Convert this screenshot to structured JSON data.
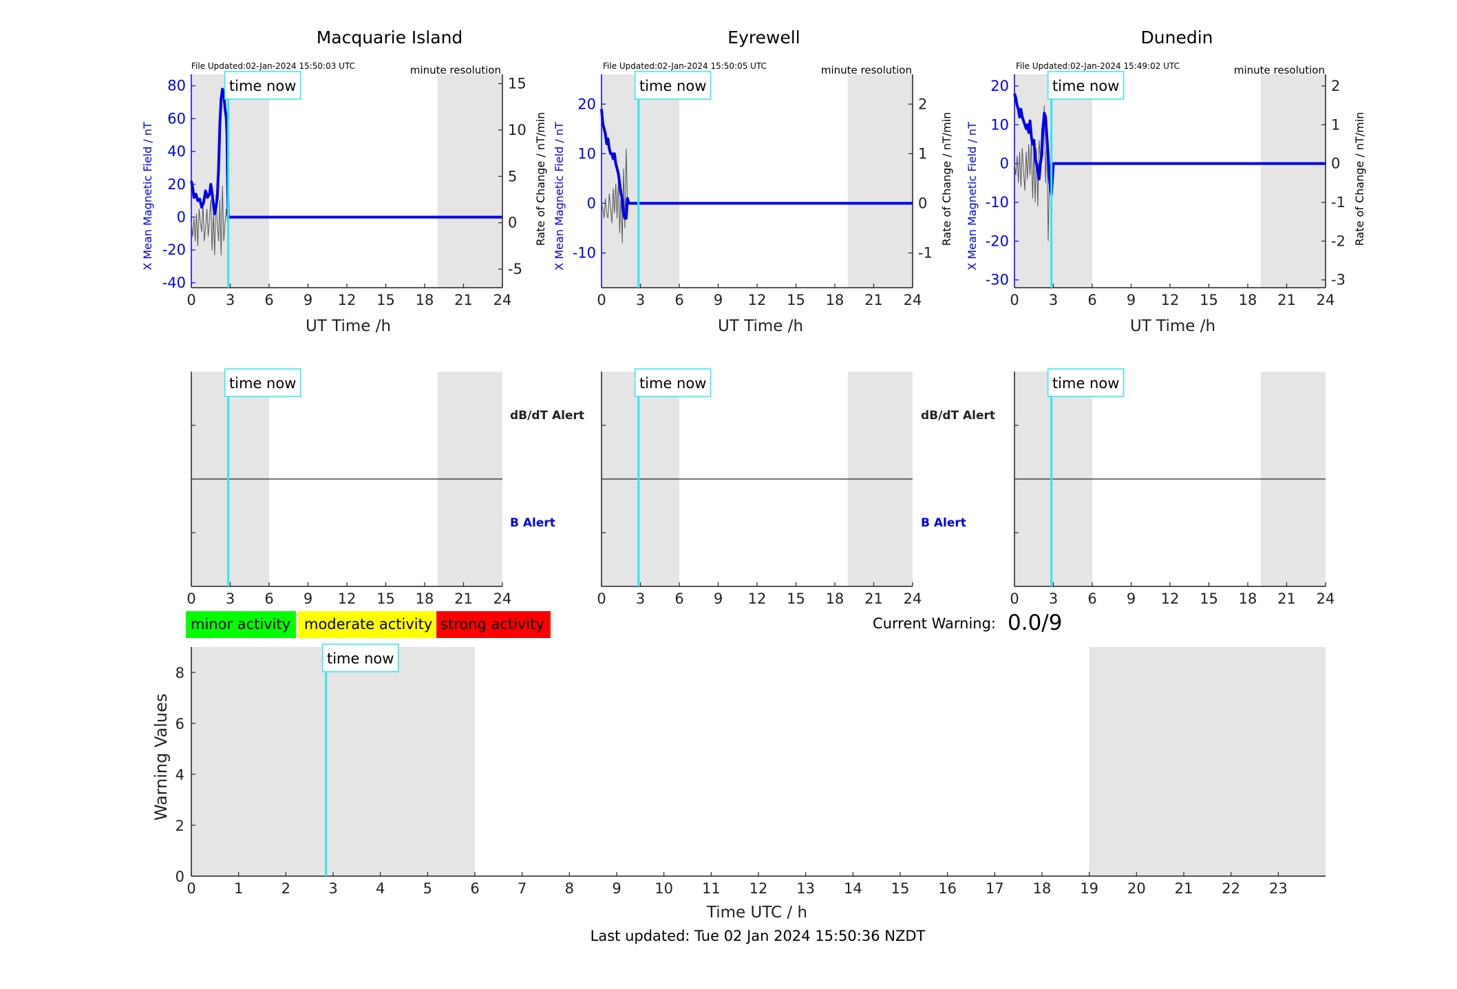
{
  "colors": {
    "shade": "#e5e5e5",
    "time_now_line": "#33e5ee",
    "x_field": "#0000ee",
    "rate": "#555555",
    "b_alert": "#0000ee",
    "minor": "#00ff00",
    "moderate": "#ffff00",
    "strong": "#ff0000"
  },
  "common": {
    "time_now_label": "time now",
    "minute_resolution": "minute resolution",
    "ut_xlabel": "UT Time /h",
    "y_left_label": "X Mean Magnetic Field / nT",
    "y_right_label": "Rate of Change / nT/min",
    "dbdt_alert": "dB/dT Alert",
    "b_alert": "B Alert"
  },
  "stations": [
    {
      "name": "Macquarie Island",
      "file_updated": "File Updated:02-Jan-2024 15:50:03 UTC"
    },
    {
      "name": "Eyrewell",
      "file_updated": "File Updated:02-Jan-2024 15:50:05 UTC"
    },
    {
      "name": "Dunedin",
      "file_updated": "File Updated:02-Jan-2024 15:49:02 UTC"
    }
  ],
  "legend": {
    "minor": "minor activity",
    "moderate": "moderate activity",
    "strong": "strong activity"
  },
  "current_warning": {
    "label": "Current Warning:",
    "value": "0.0/9"
  },
  "footer": {
    "last_updated": "Last updated: Tue 02 Jan 2024 15:50:36 NZDT"
  },
  "chart_data": [
    {
      "type": "line",
      "title": "Macquarie Island",
      "xlabel": "UT Time /h",
      "ylabel": "X Mean Magnetic Field / nT",
      "y2label": "Rate of Change / nT/min",
      "xlim": [
        0,
        24
      ],
      "xticks": [
        0,
        3,
        6,
        9,
        12,
        15,
        18,
        21,
        24
      ],
      "ylim": [
        -43,
        87
      ],
      "yticks": [
        -40,
        -20,
        0,
        20,
        40,
        60,
        80
      ],
      "y2lim": [
        -7,
        16
      ],
      "y2ticks": [
        -5,
        0,
        5,
        10,
        15
      ],
      "shaded_ranges": [
        [
          0,
          6
        ],
        [
          19,
          24
        ]
      ],
      "time_now": 2.85,
      "series": [
        {
          "axis": "left",
          "x": [
            0,
            0.1,
            0.2,
            0.35,
            0.5,
            0.65,
            0.8,
            0.95,
            1.1,
            1.25,
            1.4,
            1.5,
            1.6,
            1.7,
            1.8,
            1.9,
            2.0,
            2.1,
            2.2,
            2.3,
            2.4,
            2.5,
            2.6,
            2.7,
            2.75,
            2.8,
            2.85,
            3,
            24
          ],
          "y": [
            22,
            18,
            12,
            14,
            10,
            11,
            6,
            9,
            16,
            12,
            14,
            20,
            15,
            8,
            2,
            6,
            12,
            30,
            56,
            72,
            78,
            75,
            66,
            60,
            50,
            20,
            0,
            0,
            0
          ]
        },
        {
          "axis": "right",
          "x": [
            0,
            0.1,
            0.2,
            0.3,
            0.4,
            0.5,
            0.6,
            0.7,
            0.8,
            0.9,
            1.0,
            1.1,
            1.2,
            1.3,
            1.4,
            1.5,
            1.6,
            1.7,
            1.8,
            1.9,
            2.0,
            2.1,
            2.2,
            2.3,
            2.4,
            2.5,
            2.6,
            2.7,
            2.8
          ],
          "y": [
            0,
            -1.5,
            0.5,
            -2,
            1,
            -2.5,
            1.5,
            0,
            -1,
            2,
            -2,
            -0.5,
            1.5,
            -1.5,
            0.5,
            2.5,
            -3,
            1,
            -3.5,
            3,
            0,
            -2,
            2.5,
            -3.5,
            4,
            -2,
            0,
            1.5,
            0
          ]
        }
      ]
    },
    {
      "type": "line",
      "title": "Eyrewell",
      "xlabel": "UT Time /h",
      "ylabel": "X Mean Magnetic Field / nT",
      "y2label": "Rate of Change / nT/min",
      "xlim": [
        0,
        24
      ],
      "xticks": [
        0,
        3,
        6,
        9,
        12,
        15,
        18,
        21,
        24
      ],
      "ylim": [
        -17,
        26
      ],
      "yticks": [
        -10,
        0,
        10,
        20
      ],
      "y2lim": [
        -1.7,
        2.6
      ],
      "y2ticks": [
        -1,
        0,
        1,
        2
      ],
      "shaded_ranges": [
        [
          0,
          6
        ],
        [
          19,
          24
        ]
      ],
      "time_now": 2.85,
      "series": [
        {
          "axis": "left",
          "x": [
            0,
            0.1,
            0.2,
            0.3,
            0.4,
            0.5,
            0.6,
            0.7,
            0.8,
            0.9,
            1.0,
            1.1,
            1.2,
            1.3,
            1.4,
            1.5,
            1.6,
            1.7,
            1.8,
            1.9,
            2.0,
            2.1,
            2.2,
            24
          ],
          "y": [
            19,
            16,
            15,
            14,
            12,
            13,
            11,
            10,
            10,
            9,
            10,
            8,
            7,
            6,
            4,
            2,
            1,
            -2,
            -3,
            -3,
            1,
            0,
            0,
            0
          ]
        },
        {
          "axis": "right",
          "x": [
            0,
            0.1,
            0.2,
            0.3,
            0.4,
            0.5,
            0.6,
            0.7,
            0.8,
            0.9,
            1.0,
            1.1,
            1.2,
            1.3,
            1.4,
            1.5,
            1.6,
            1.7,
            1.8,
            1.9,
            2.0
          ],
          "y": [
            0,
            -0.1,
            -0.3,
            0.1,
            -0.2,
            -0.3,
            0.2,
            -0.1,
            -0.4,
            0.3,
            -0.2,
            0.4,
            -0.3,
            0.5,
            -0.6,
            0.2,
            -0.8,
            0.7,
            -0.5,
            1.1,
            0
          ]
        }
      ]
    },
    {
      "type": "line",
      "title": "Dunedin",
      "xlabel": "UT Time /h",
      "ylabel": "X Mean Magnetic Field / nT",
      "y2label": "Rate of Change / nT/min",
      "xlim": [
        0,
        24
      ],
      "xticks": [
        0,
        3,
        6,
        9,
        12,
        15,
        18,
        21,
        24
      ],
      "ylim": [
        -32,
        23
      ],
      "yticks": [
        -30,
        -20,
        -10,
        0,
        10,
        20
      ],
      "y2lim": [
        -3.2,
        2.3
      ],
      "y2ticks": [
        -3,
        -2,
        -1,
        0,
        1,
        2
      ],
      "shaded_ranges": [
        [
          0,
          6
        ],
        [
          19,
          24
        ]
      ],
      "time_now": 2.85,
      "series": [
        {
          "axis": "left",
          "x": [
            0,
            0.1,
            0.2,
            0.3,
            0.4,
            0.5,
            0.6,
            0.7,
            0.8,
            0.9,
            1.0,
            1.1,
            1.2,
            1.3,
            1.4,
            1.5,
            1.6,
            1.7,
            1.8,
            1.9,
            2.0,
            2.1,
            2.2,
            2.3,
            2.4,
            2.5,
            2.6,
            2.7,
            2.8,
            2.85,
            3,
            24
          ],
          "y": [
            18,
            17,
            15,
            14,
            12,
            14,
            12,
            11,
            10,
            9,
            10,
            8,
            11,
            7,
            5,
            6,
            1,
            0,
            -2,
            -4,
            0,
            2,
            9,
            13,
            12,
            7,
            2,
            -4,
            -7,
            -8,
            0,
            0
          ]
        },
        {
          "axis": "right",
          "x": [
            0,
            0.1,
            0.2,
            0.3,
            0.4,
            0.5,
            0.6,
            0.7,
            0.8,
            0.9,
            1.0,
            1.1,
            1.2,
            1.3,
            1.4,
            1.5,
            1.6,
            1.7,
            1.8,
            1.9,
            2.0,
            2.1,
            2.2,
            2.3,
            2.4,
            2.5,
            2.6,
            2.7,
            2.8
          ],
          "y": [
            0,
            -0.3,
            0.2,
            -0.5,
            0.3,
            -0.6,
            0.4,
            -0.2,
            -0.7,
            0.3,
            -0.4,
            0.5,
            -0.3,
            0.6,
            -0.9,
            0.3,
            -1.0,
            0.4,
            -1.1,
            0.6,
            0.1,
            0.9,
            0.2,
            1.5,
            -0.5,
            0.8,
            -2.0,
            -0.3,
            0
          ]
        }
      ]
    },
    {
      "type": "line",
      "title": "",
      "xlabel": "Time UTC / h",
      "ylabel": "Warning Values",
      "xlim": [
        0,
        24
      ],
      "xticks": [
        0,
        1,
        2,
        3,
        4,
        5,
        6,
        7,
        8,
        9,
        10,
        11,
        12,
        13,
        14,
        15,
        16,
        17,
        18,
        19,
        20,
        21,
        22,
        23
      ],
      "ylim": [
        0,
        9
      ],
      "yticks": [
        0,
        2,
        4,
        6,
        8
      ],
      "shaded_ranges": [
        [
          0,
          6
        ],
        [
          19,
          24
        ]
      ],
      "time_now": 2.85,
      "series": []
    }
  ]
}
